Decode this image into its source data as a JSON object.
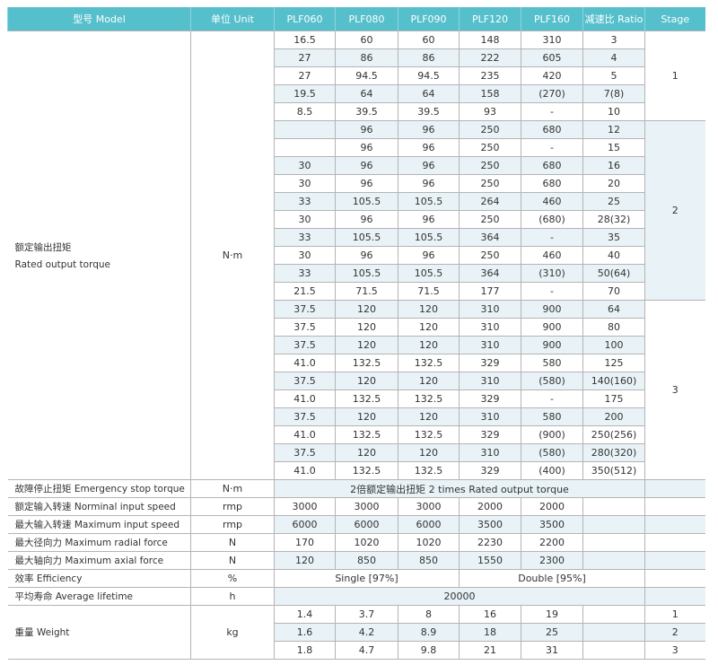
{
  "header": [
    "型号 Model",
    "单位 Unit",
    "PLF060",
    "PLF080",
    "PLF090",
    "PLF120",
    "PLF160",
    "减速比 Ratio",
    "Stage"
  ],
  "torque": {
    "label_cn": "额定输出扭矩",
    "label_en": "Rated output torque",
    "unit": "N·m",
    "rows": [
      [
        "16.5",
        "60",
        "60",
        "148",
        "310",
        "3"
      ],
      [
        "27",
        "86",
        "86",
        "222",
        "605",
        "4"
      ],
      [
        "27",
        "94.5",
        "94.5",
        "235",
        "420",
        "5"
      ],
      [
        "19.5",
        "64",
        "64",
        "158",
        "(270)",
        "7(8)"
      ],
      [
        "8.5",
        "39.5",
        "39.5",
        "93",
        "-",
        "10"
      ],
      [
        "",
        "96",
        "96",
        "250",
        "680",
        "12"
      ],
      [
        "",
        "96",
        "96",
        "250",
        "-",
        "15"
      ],
      [
        "30",
        "96",
        "96",
        "250",
        "680",
        "16"
      ],
      [
        "30",
        "96",
        "96",
        "250",
        "680",
        "20"
      ],
      [
        "33",
        "105.5",
        "105.5",
        "264",
        "460",
        "25"
      ],
      [
        "30",
        "96",
        "96",
        "250",
        "(680)",
        "28(32)"
      ],
      [
        "33",
        "105.5",
        "105.5",
        "364",
        "-",
        "35"
      ],
      [
        "30",
        "96",
        "96",
        "250",
        "460",
        "40"
      ],
      [
        "33",
        "105.5",
        "105.5",
        "364",
        "(310)",
        "50(64)"
      ],
      [
        "21.5",
        "71.5",
        "71.5",
        "177",
        "-",
        "70"
      ],
      [
        "37.5",
        "120",
        "120",
        "310",
        "900",
        "64"
      ],
      [
        "37.5",
        "120",
        "120",
        "310",
        "900",
        "80"
      ],
      [
        "37.5",
        "120",
        "120",
        "310",
        "900",
        "100"
      ],
      [
        "41.0",
        "132.5",
        "132.5",
        "329",
        "580",
        "125"
      ],
      [
        "37.5",
        "120",
        "120",
        "310",
        "(580)",
        "140(160)"
      ],
      [
        "41.0",
        "132.5",
        "132.5",
        "329",
        "-",
        "175"
      ],
      [
        "37.5",
        "120",
        "120",
        "310",
        "580",
        "200"
      ],
      [
        "41.0",
        "132.5",
        "132.5",
        "329",
        "(900)",
        "250(256)"
      ],
      [
        "37.5",
        "120",
        "120",
        "310",
        "(580)",
        "280(320)"
      ],
      [
        "41.0",
        "132.5",
        "132.5",
        "329",
        "(400)",
        "350(512)"
      ]
    ],
    "stages": [
      "1",
      "2",
      "3"
    ]
  },
  "emergency": {
    "label": "故障停止扭矩 Emergency stop torque",
    "unit": "N·m",
    "value": "2倍额定输出扭矩  2 times Rated output torque"
  },
  "nominal_speed": {
    "label": "额定输入转速 Norminal input speed",
    "unit": "rmp",
    "values": [
      "3000",
      "3000",
      "3000",
      "2000",
      "2000"
    ]
  },
  "max_speed": {
    "label": "最大输入转速 Maximum input speed",
    "unit": "rmp",
    "values": [
      "6000",
      "6000",
      "6000",
      "3500",
      "3500"
    ]
  },
  "radial": {
    "label": "最大径向力 Maximum radial force",
    "unit": "N",
    "values": [
      "170",
      "1020",
      "1020",
      "2230",
      "2200"
    ]
  },
  "axial": {
    "label": "最大轴向力 Maximum axial force",
    "unit": "N",
    "values": [
      "120",
      "850",
      "850",
      "1550",
      "2300"
    ]
  },
  "efficiency": {
    "label": "效率 Efficiency",
    "unit": "%",
    "single": "Single [97%]",
    "double": "Double [95%]"
  },
  "lifetime": {
    "label": "平均寿命 Average lifetime",
    "unit": "h",
    "value": "20000"
  },
  "weight": {
    "label": "重量 Weight",
    "unit": "kg",
    "rows": [
      [
        "1.4",
        "3.7",
        "8",
        "16",
        "19",
        "1"
      ],
      [
        "1.6",
        "4.2",
        "8.9",
        "18",
        "25",
        "2"
      ],
      [
        "1.8",
        "4.7",
        "9.8",
        "21",
        "31",
        "3"
      ]
    ]
  },
  "colors": {
    "header": "#55bfcc",
    "stripe": "#e9f3f7",
    "border": "#b4b4b4"
  }
}
